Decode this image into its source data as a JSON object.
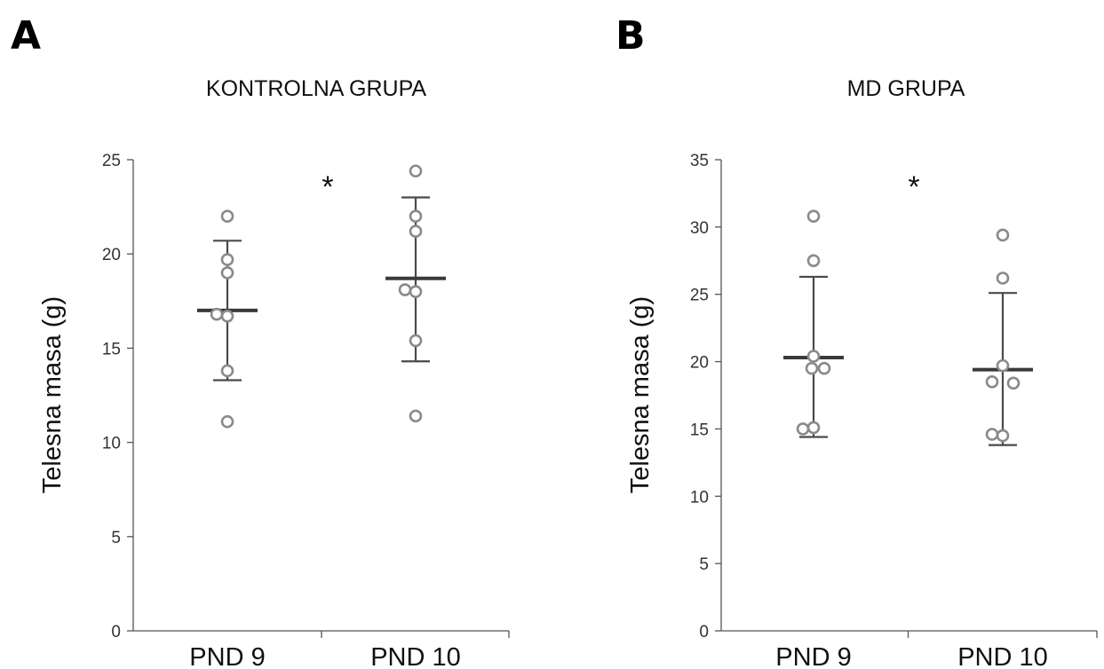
{
  "chart_data": [
    {
      "type": "scatter",
      "panel": "A",
      "title": "KONTROLNA GRUPA",
      "ylabel": "Telesna masa (g)",
      "ylim": [
        0,
        25
      ],
      "yticks": [
        0,
        5,
        10,
        15,
        20,
        25
      ],
      "categories": [
        "PND 9",
        "PND 10"
      ],
      "points": [
        [
          22.0,
          19.7,
          19.0,
          16.8,
          16.7,
          13.8,
          11.1
        ],
        [
          24.4,
          22.0,
          21.2,
          18.1,
          18.0,
          15.4,
          11.4
        ]
      ],
      "mean": [
        17.0,
        18.7
      ],
      "error_low": [
        13.3,
        14.3
      ],
      "error_high": [
        20.7,
        23.0
      ],
      "significance": "*"
    },
    {
      "type": "scatter",
      "panel": "B",
      "title": "MD GRUPA",
      "ylabel": "Telesna masa (g)",
      "ylim": [
        0,
        35
      ],
      "yticks": [
        0,
        5,
        10,
        15,
        20,
        25,
        30,
        35
      ],
      "categories": [
        "PND 9",
        "PND 10"
      ],
      "points": [
        [
          30.8,
          27.5,
          20.4,
          19.5,
          19.5,
          15.1,
          15.0
        ],
        [
          29.4,
          26.2,
          19.7,
          18.5,
          18.4,
          14.6,
          14.5
        ]
      ],
      "mean": [
        20.3,
        19.4
      ],
      "error_low": [
        14.4,
        13.8
      ],
      "error_high": [
        26.3,
        25.1
      ],
      "significance": "*"
    }
  ],
  "style": {
    "point_stroke": "#8a8a8a",
    "bar_color": "#3a3a3a",
    "axis_color": "#555555"
  }
}
